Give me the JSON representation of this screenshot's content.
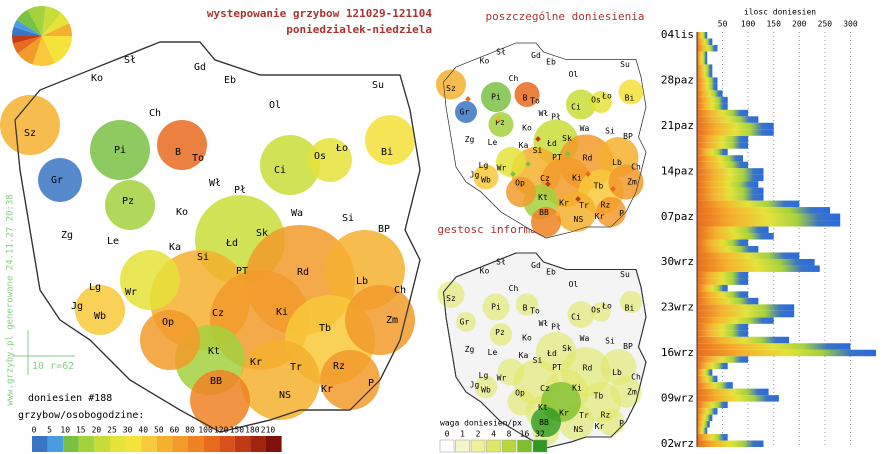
{
  "title": [
    "wystepowanie grzybow 121029-121104",
    "poniedzialek-niedziela"
  ],
  "side_note": "www.grzyby.pl generowane 24.11.27 20:38",
  "scale_note": "10 r=62",
  "reports": "doniesien #188",
  "legend_title": "grzybow/osobogodzine:",
  "legend_values": [
    0,
    5,
    10,
    15,
    20,
    25,
    30,
    40,
    50,
    60,
    80,
    100,
    120,
    150,
    180,
    210
  ],
  "legend_colors": [
    "#3a75c4",
    "#4a9be0",
    "#7ac143",
    "#a4d13e",
    "#c9dd3a",
    "#e5e23a",
    "#f5e23a",
    "#f8c93a",
    "#f5b02e",
    "#f29a2a",
    "#ee8224",
    "#e86a1e",
    "#d8501a",
    "#c03a15",
    "#a02410",
    "#80100a"
  ],
  "map_labels": [
    "Sł",
    "Gd",
    "Eb",
    "Su",
    "Ko",
    "Ol",
    "Ch",
    "Sz",
    "Pi",
    "B",
    "To",
    "Bi",
    "Ło",
    "Os",
    "Gr",
    "Ci",
    "Wł",
    "Pł",
    "Pz",
    "Ko",
    "Wa",
    "Si",
    "Zg",
    "Le",
    "Sk",
    "Łd",
    "Ka",
    "BP",
    "Si",
    "PT",
    "Rd",
    "Lb",
    "Lg",
    "Wr",
    "Ch",
    "Jg",
    "Wb",
    "Op",
    "Cz",
    "Ki",
    "Zm",
    "Tb",
    "Kt",
    "Kr",
    "Rz",
    "Tr",
    "BB",
    "Kr",
    "P",
    "NS"
  ],
  "panel_titles": [
    "poszczególne doniesienia",
    "gestosc informacji"
  ],
  "density_legend_title": "waga doniesien/px",
  "density_values": [
    0,
    1,
    2,
    4,
    8,
    16,
    32
  ],
  "density_colors": [
    "#ffffff",
    "#f4f7c8",
    "#eef09a",
    "#dfe864",
    "#b8d83a",
    "#7fbf2e",
    "#2f9a22"
  ],
  "chart_data": {
    "type": "bar",
    "x_label": "ilosc doniesien",
    "categories": [
      "02wrz",
      null,
      null,
      null,
      null,
      null,
      null,
      "09wrz",
      null,
      null,
      null,
      null,
      null,
      null,
      "16wrz",
      null,
      null,
      null,
      null,
      null,
      null,
      "23wrz",
      null,
      null,
      null,
      null,
      null,
      null,
      "30wrz",
      null,
      null,
      null,
      null,
      null,
      null,
      "07paz",
      null,
      null,
      null,
      null,
      null,
      null,
      "14paz",
      null,
      null,
      null,
      null,
      null,
      null,
      "21paz",
      null,
      null,
      null,
      null,
      null,
      null,
      "28paz",
      null,
      null,
      null,
      null,
      null,
      null,
      "04lis"
    ],
    "values": [
      130,
      60,
      20,
      25,
      30,
      40,
      60,
      160,
      140,
      70,
      40,
      30,
      60,
      100,
      350,
      300,
      180,
      100,
      100,
      150,
      190,
      190,
      120,
      100,
      60,
      100,
      100,
      240,
      230,
      200,
      120,
      100,
      150,
      140,
      280,
      280,
      260,
      200,
      130,
      130,
      120,
      130,
      130,
      100,
      90,
      60,
      100,
      100,
      150,
      150,
      120,
      100,
      60,
      60,
      50,
      40,
      40,
      30,
      30,
      20,
      20,
      40,
      30,
      20
    ],
    "xlim": [
      0,
      350
    ],
    "xticks": [
      50,
      100,
      150,
      200,
      250,
      300
    ],
    "grid": true
  }
}
